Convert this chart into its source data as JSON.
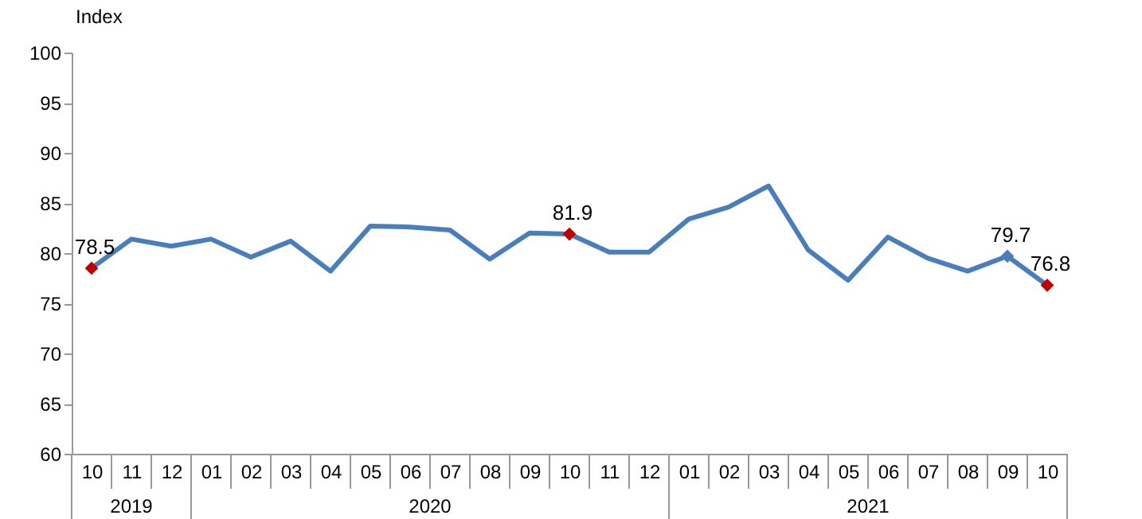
{
  "chart_data": {
    "type": "line",
    "ylabel": "Index",
    "categories": [
      "10",
      "11",
      "12",
      "01",
      "02",
      "03",
      "04",
      "05",
      "06",
      "07",
      "08",
      "09",
      "10",
      "11",
      "12",
      "01",
      "02",
      "03",
      "04",
      "05",
      "06",
      "07",
      "08",
      "09",
      "10"
    ],
    "annotations": [
      "2019",
      "2020",
      "2021"
    ],
    "series": [
      {
        "color": "#4a7ebb",
        "values": [
          78.5,
          81.4,
          80.7,
          81.4,
          79.6,
          81.2,
          78.2,
          82.7,
          82.6,
          82.3,
          79.4,
          82.0,
          81.9,
          80.1,
          80.1,
          83.4,
          84.6,
          86.7,
          80.3,
          77.3,
          81.6,
          79.5,
          78.2,
          79.7,
          76.8
        ],
        "value_labels": [
          "78.5",
          null,
          null,
          null,
          null,
          null,
          null,
          null,
          null,
          null,
          null,
          null,
          "81.9",
          null,
          null,
          null,
          null,
          null,
          null,
          null,
          null,
          null,
          null,
          "79.7",
          "76.8"
        ],
        "colors": [
          "#c00000",
          null,
          null,
          null,
          null,
          null,
          null,
          null,
          null,
          null,
          null,
          null,
          "#c00000",
          null,
          null,
          null,
          null,
          null,
          null,
          null,
          null,
          null,
          null,
          "#4a7ebb",
          "#c00000"
        ]
      }
    ],
    "ylim": [
      60,
      100
    ],
    "yticks": [
      60,
      65,
      70,
      75,
      80,
      85,
      90,
      95,
      100
    ],
    "grid": false
  }
}
